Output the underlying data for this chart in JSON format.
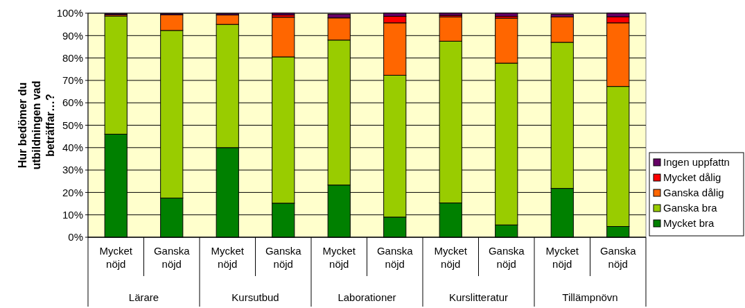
{
  "chart_data": {
    "type": "bar",
    "stacked": true,
    "ylabel": "Hur bedömer du utbildningen vad beträffar…?",
    "categories": [
      "Mycket nöjd",
      "Ganska nöjd",
      "Mycket nöjd",
      "Ganska nöjd",
      "Mycket nöjd",
      "Ganska nöjd",
      "Mycket nöjd",
      "Ganska nöjd",
      "Mycket nöjd",
      "Ganska nöjd"
    ],
    "annotations": [
      "Lärare",
      "Kursutbud",
      "Laborationer",
      "Kurslitteratur",
      "Tillämpnövn"
    ],
    "series": [
      {
        "name": "Mycket bra",
        "color": "#008000",
        "values": [
          46,
          17.5,
          40,
          15.2,
          23.3,
          9,
          15.3,
          5.5,
          21.8,
          4.8
        ]
      },
      {
        "name": "Ganska bra",
        "color": "#99cc00",
        "values": [
          52.7,
          74.8,
          55,
          65.3,
          64.7,
          63.3,
          72.2,
          72.2,
          65.2,
          62.5
        ]
      },
      {
        "name": "Ganska dålig",
        "color": "#ff6600",
        "values": [
          0.6,
          7,
          4.2,
          17.7,
          9.9,
          23.4,
          10.8,
          20.1,
          11.3,
          28.4
        ]
      },
      {
        "name": "Mycket dålig",
        "color": "#ff0000",
        "values": [
          null,
          null,
          null,
          1,
          null,
          2.9,
          0.7,
          0.8,
          null,
          2.7
        ]
      },
      {
        "name": "Ingen uppfattn",
        "color": "#660066",
        "values": [
          0.5,
          0.5,
          0.6,
          0.8,
          1.7,
          1.4,
          1,
          1.4,
          1.2,
          1.6
        ]
      }
    ],
    "ylim": [
      0,
      100
    ],
    "yticks": [
      {
        "value": 0,
        "label": "0%"
      },
      {
        "value": 10,
        "label": "10%"
      },
      {
        "value": 20,
        "label": "20%"
      },
      {
        "value": 30,
        "label": "30%"
      },
      {
        "value": 40,
        "label": "40%"
      },
      {
        "value": 50,
        "label": "50%"
      },
      {
        "value": 60,
        "label": "60%"
      },
      {
        "value": 70,
        "label": "70%"
      },
      {
        "value": 80,
        "label": "80%"
      },
      {
        "value": 90,
        "label": "90%"
      },
      {
        "value": 100,
        "label": "100%"
      }
    ],
    "grid": "y",
    "legend": "right"
  }
}
